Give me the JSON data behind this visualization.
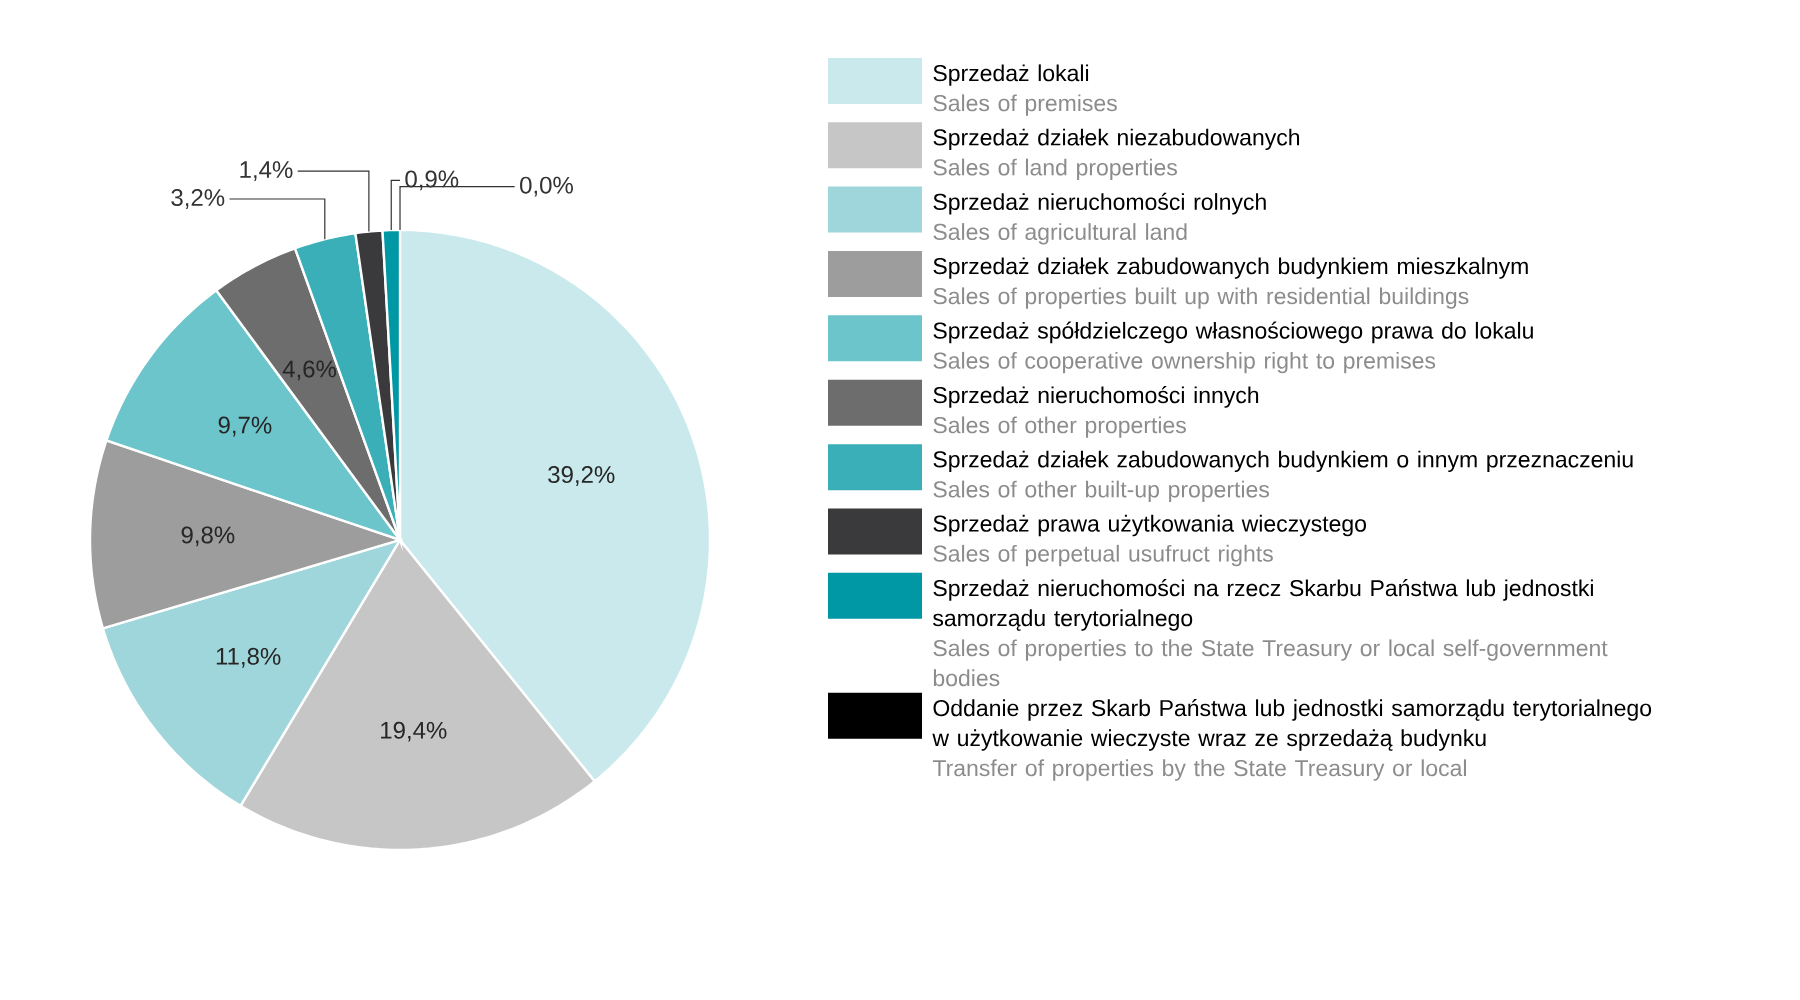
{
  "chart_data": {
    "type": "pie",
    "categories": [
      "Sprzedaż lokali\nSales of  premises",
      "Sprzedaż działek niezabudowanych\nSales of land properties",
      "Sprzedaż nieruchomości rolnych\nSales of agricultural land",
      "Sprzedaż działek zabudowanych budynkiem mieszkalnym\nSales of properties built up with residential buildings",
      "Sprzedaż spółdzielczego własnościowego prawa do lokalu\nSales of cooperative ownership right to premises",
      "Sprzedaż nieruchomości innych\nSales of other properties",
      "Sprzedaż działek zabudowanych budynkiem o innym przeznaczeniu\nSales of other built-up properties",
      "Sprzedaż prawa użytkowania wieczystego\nSales of perpetual usufruct rights",
      "Sprzedaż nieruchomości na rzecz Skarbu Państwa lub jednostki samorządu terytorialnego\nSales of properties to the State Treasury or local self-government bodies",
      "Oddanie przez Skarb Państwa lub jednostki samorządu terytorialnego w użytkowanie wieczyste wraz ze sprzedażą budynku\nTransfer of properties by the State Treasury or local"
    ],
    "values": [
      39.2,
      19.4,
      11.8,
      9.8,
      9.7,
      4.6,
      3.2,
      1.4,
      0.9,
      0.0
    ],
    "value_labels": [
      "39,2%",
      "19,4%",
      "11,8%",
      "9,8%",
      "9,7%",
      "4,6%",
      "3,2%",
      "1,4%",
      "0,9%",
      "0,0%"
    ],
    "colors": [
      "#c9e9ec",
      "#c6c6c6",
      "#9fd6dc",
      "#9d9d9d",
      "#6cc5cb",
      "#6d6d6d",
      "#3aafb8",
      "#3a3a3c",
      "#0098a4",
      "#000000"
    ],
    "legend": "right"
  }
}
